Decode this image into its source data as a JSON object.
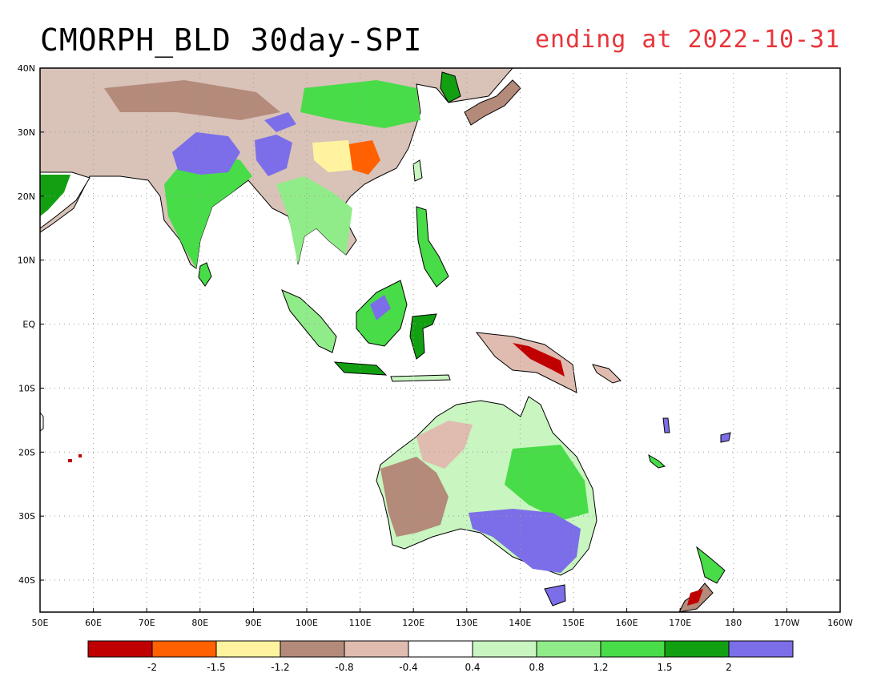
{
  "title": {
    "main": "CMORPH_BLD 30day-SPI",
    "ending": "ending at 2022-10-31",
    "ending_color": "#e8353b"
  },
  "map": {
    "lon_range": [
      50,
      200
    ],
    "lat_range": [
      -45,
      40
    ],
    "lat_ticks": [
      "40N",
      "30N",
      "20N",
      "10N",
      "EQ",
      "10S",
      "20S",
      "30S",
      "40S"
    ],
    "lon_ticks": [
      "50E",
      "60E",
      "70E",
      "80E",
      "90E",
      "100E",
      "110E",
      "120E",
      "130E",
      "140E",
      "150E",
      "160E",
      "170E",
      "180",
      "170W",
      "160W"
    ],
    "grid": "dotted"
  },
  "legend": {
    "colors": [
      "#c00000",
      "#ff6000",
      "#fff3a0",
      "#b48a7a",
      "#e0bcb0",
      "#ffffff",
      "#c8f5c0",
      "#90ec88",
      "#48dc48",
      "#12a012",
      "#7b6ee8"
    ],
    "labels": [
      "-2",
      "-1.5",
      "-1.2",
      "-0.8",
      "-0.4",
      "0.4",
      "0.8",
      "1.2",
      "1.5",
      "2"
    ]
  }
}
